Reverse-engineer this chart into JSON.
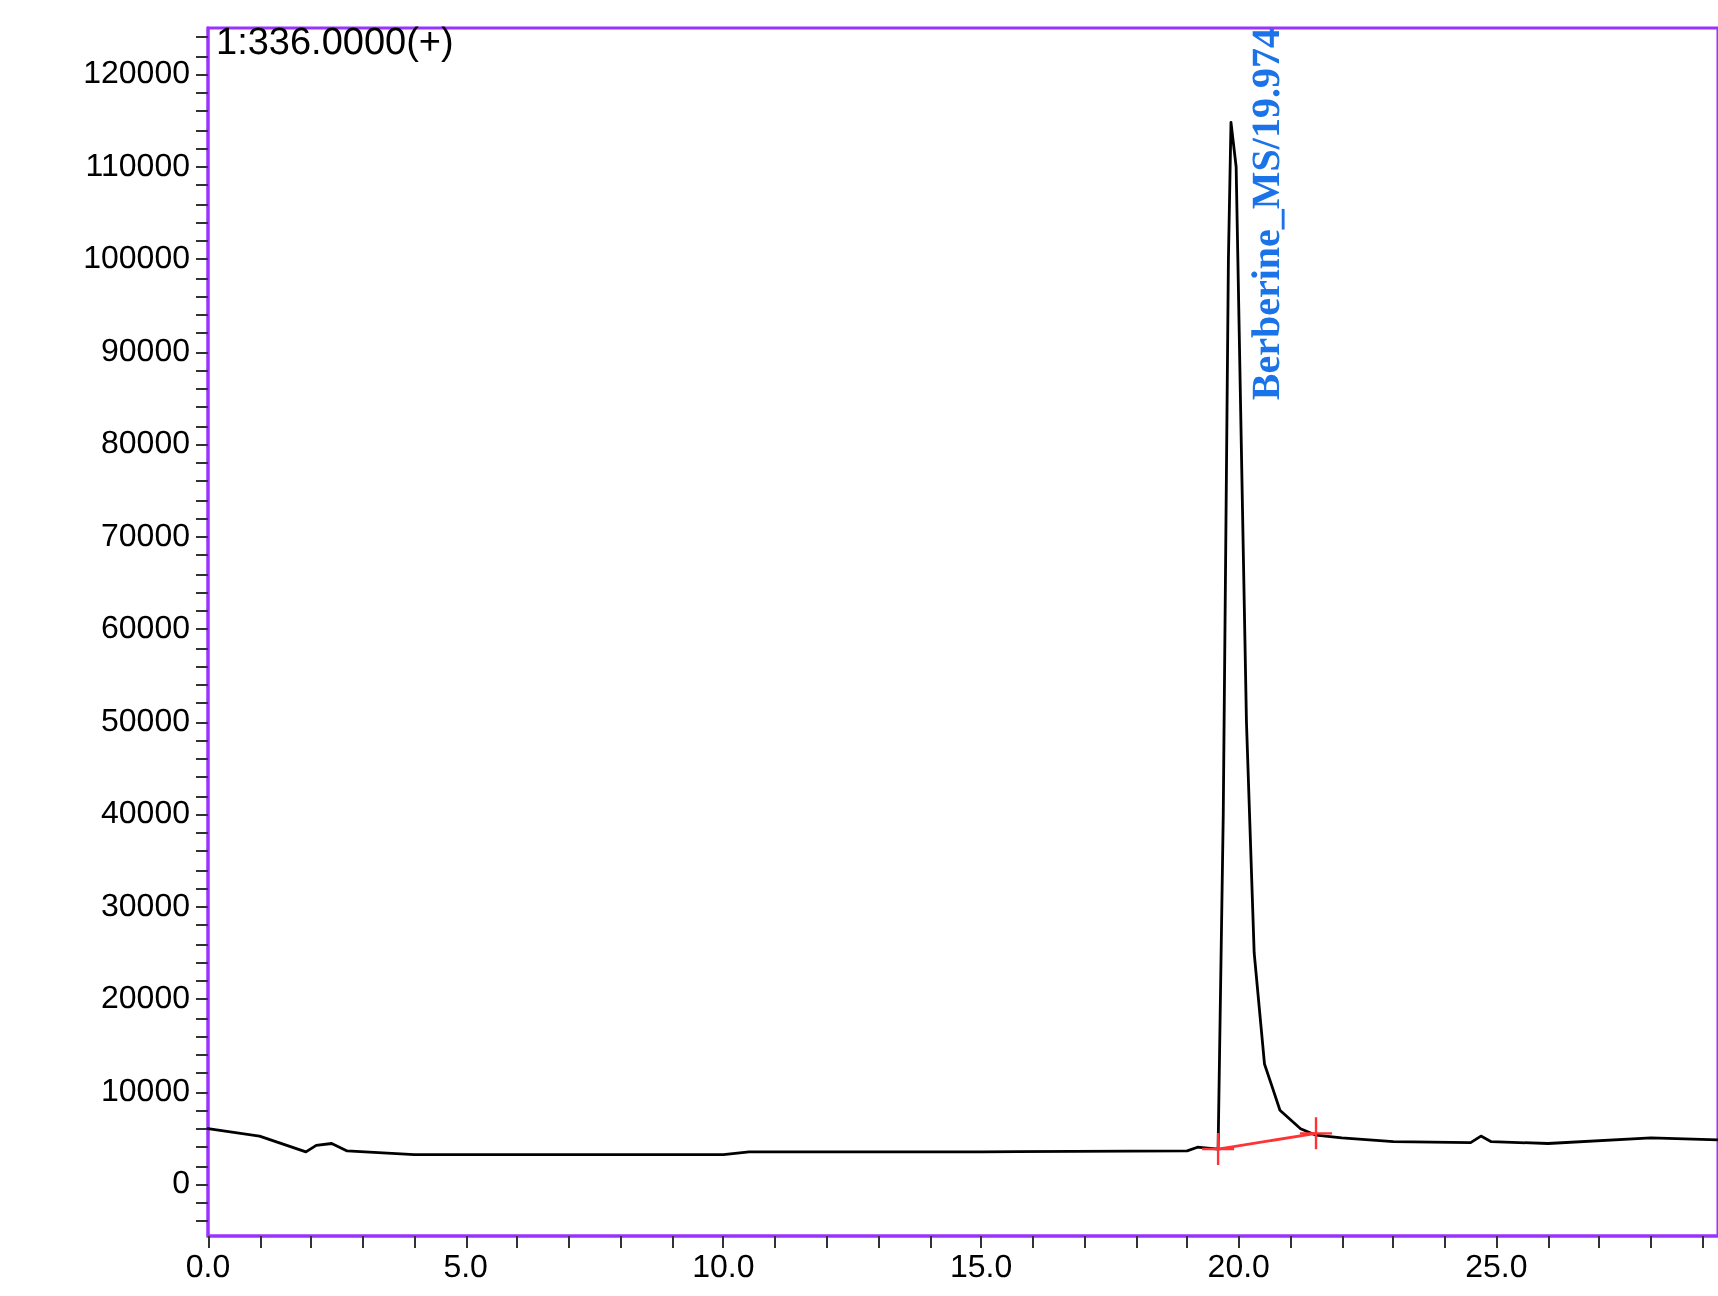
{
  "chart_data": {
    "type": "line",
    "annotations": [
      "1:336.0000(+)",
      "Berberine_MS/19.974"
    ],
    "xlim": [
      0,
      29.3
    ],
    "ylim": [
      -5600,
      125000
    ],
    "xticks": [
      {
        "value": 0,
        "label": "0.0"
      },
      {
        "value": 1,
        "label": null
      },
      {
        "value": 2,
        "label": null
      },
      {
        "value": 3,
        "label": null
      },
      {
        "value": 4,
        "label": null
      },
      {
        "value": 5,
        "label": "5.0"
      },
      {
        "value": 6,
        "label": null
      },
      {
        "value": 7,
        "label": null
      },
      {
        "value": 8,
        "label": null
      },
      {
        "value": 9,
        "label": null
      },
      {
        "value": 10,
        "label": "10.0"
      },
      {
        "value": 11,
        "label": null
      },
      {
        "value": 12,
        "label": null
      },
      {
        "value": 13,
        "label": null
      },
      {
        "value": 14,
        "label": null
      },
      {
        "value": 15,
        "label": "15.0"
      },
      {
        "value": 16,
        "label": null
      },
      {
        "value": 17,
        "label": null
      },
      {
        "value": 18,
        "label": null
      },
      {
        "value": 19,
        "label": null
      },
      {
        "value": 20,
        "label": "20.0"
      },
      {
        "value": 21,
        "label": null
      },
      {
        "value": 22,
        "label": null
      },
      {
        "value": 23,
        "label": null
      },
      {
        "value": 24,
        "label": null
      },
      {
        "value": 25,
        "label": "25.0"
      },
      {
        "value": 26,
        "label": null
      },
      {
        "value": 27,
        "label": null
      },
      {
        "value": 28,
        "label": null
      },
      {
        "value": 29,
        "label": null
      }
    ],
    "yticks": [
      {
        "value": -4000,
        "label": null
      },
      {
        "value": -2000,
        "label": null
      },
      0,
      {
        "value": 2000,
        "label": null
      },
      {
        "value": 4000,
        "label": null
      },
      {
        "value": 6000,
        "label": null
      },
      {
        "value": 8000,
        "label": null
      },
      10000,
      {
        "value": 12000,
        "label": null
      },
      {
        "value": 14000,
        "label": null
      },
      {
        "value": 16000,
        "label": null
      },
      {
        "value": 18000,
        "label": null
      },
      20000,
      {
        "value": 22000,
        "label": null
      },
      {
        "value": 24000,
        "label": null
      },
      {
        "value": 26000,
        "label": null
      },
      {
        "value": 28000,
        "label": null
      },
      30000,
      {
        "value": 32000,
        "label": null
      },
      {
        "value": 34000,
        "label": null
      },
      {
        "value": 36000,
        "label": null
      },
      {
        "value": 38000,
        "label": null
      },
      40000,
      {
        "value": 42000,
        "label": null
      },
      {
        "value": 44000,
        "label": null
      },
      {
        "value": 46000,
        "label": null
      },
      {
        "value": 48000,
        "label": null
      },
      50000,
      {
        "value": 52000,
        "label": null
      },
      {
        "value": 54000,
        "label": null
      },
      {
        "value": 56000,
        "label": null
      },
      {
        "value": 58000,
        "label": null
      },
      60000,
      {
        "value": 62000,
        "label": null
      },
      {
        "value": 64000,
        "label": null
      },
      {
        "value": 66000,
        "label": null
      },
      {
        "value": 68000,
        "label": null
      },
      70000,
      {
        "value": 72000,
        "label": null
      },
      {
        "value": 74000,
        "label": null
      },
      {
        "value": 76000,
        "label": null
      },
      {
        "value": 78000,
        "label": null
      },
      80000,
      {
        "value": 82000,
        "label": null
      },
      {
        "value": 84000,
        "label": null
      },
      {
        "value": 86000,
        "label": null
      },
      {
        "value": 88000,
        "label": null
      },
      90000,
      {
        "value": 92000,
        "label": null
      },
      {
        "value": 94000,
        "label": null
      },
      {
        "value": 96000,
        "label": null
      },
      {
        "value": 98000,
        "label": null
      },
      100000,
      {
        "value": 102000,
        "label": null
      },
      {
        "value": 104000,
        "label": null
      },
      {
        "value": 106000,
        "label": null
      },
      {
        "value": 108000,
        "label": null
      },
      110000,
      {
        "value": 112000,
        "label": null
      },
      {
        "value": 114000,
        "label": null
      },
      {
        "value": 116000,
        "label": null
      },
      {
        "value": 118000,
        "label": null
      },
      120000,
      {
        "value": 122000,
        "label": null
      },
      {
        "value": 124000,
        "label": null
      }
    ],
    "grid": false,
    "marker": "none",
    "line_style": "solid",
    "series": [
      {
        "color": "#000000",
        "x": [
          0,
          1,
          1.9,
          2.1,
          2.4,
          2.7,
          4,
          10,
          10.5,
          15,
          19,
          19.2,
          19.6,
          19.7,
          19.8,
          19.85,
          19.95,
          20.05,
          20.15,
          20.3,
          20.5,
          20.8,
          21.2,
          21.5,
          22,
          23,
          24.5,
          24.7,
          24.9,
          26,
          28,
          29.3
        ],
        "values": [
          6000,
          5200,
          3500,
          4200,
          4400,
          3600,
          3200,
          3200,
          3500,
          3500,
          3600,
          4000,
          3800,
          40000,
          100000,
          114800,
          110000,
          80000,
          50000,
          25000,
          13000,
          8000,
          6000,
          5300,
          5000,
          4600,
          4500,
          5200,
          4600,
          4400,
          5000,
          4800
        ]
      },
      {
        "color": "#ff3333",
        "marker": "cross",
        "x": [
          19.6,
          21.5
        ],
        "values": [
          3800,
          5500
        ]
      }
    ]
  }
}
